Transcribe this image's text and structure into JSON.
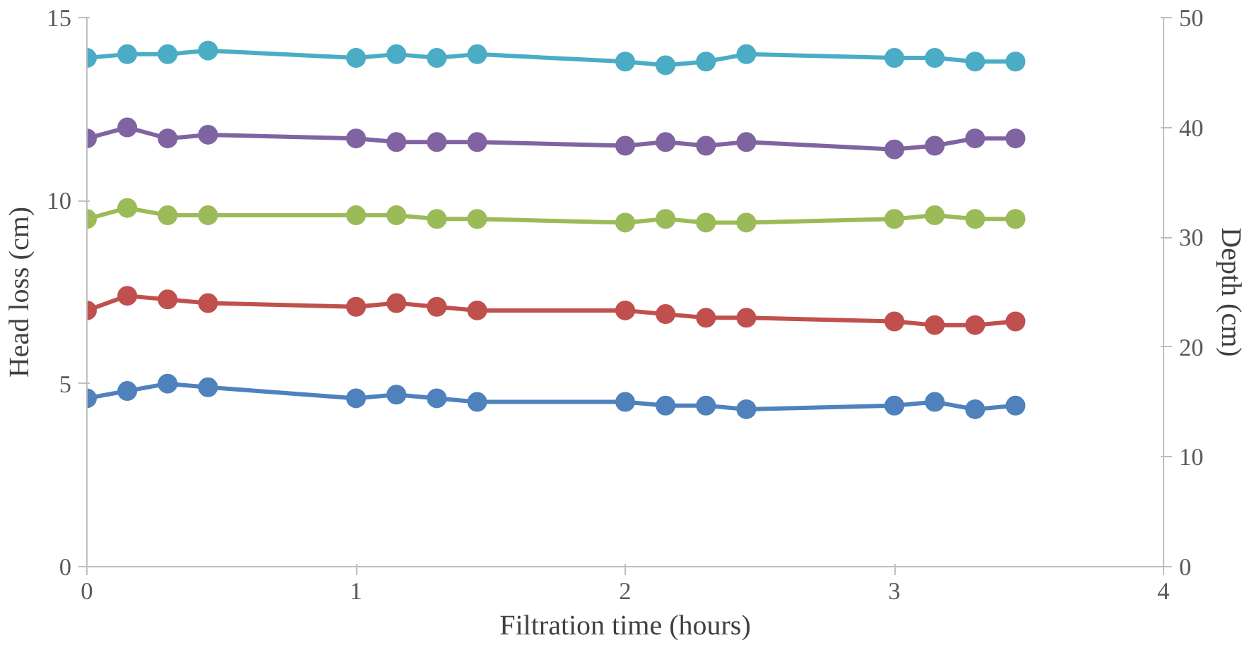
{
  "chart_data": {
    "type": "line",
    "xlabel": "Filtration time (hours)",
    "ylabel": "Head loss (cm)",
    "y2label": "Depth (cm)",
    "x": [
      0,
      0.15,
      0.3,
      0.45,
      1,
      1.15,
      1.3,
      1.45,
      2,
      2.15,
      2.3,
      2.45,
      3,
      3.15,
      3.3,
      3.45
    ],
    "series": [
      {
        "color": "#4f81bd",
        "values": [
          4.6,
          4.8,
          5.0,
          4.9,
          4.6,
          4.7,
          4.6,
          4.5,
          4.5,
          4.4,
          4.4,
          4.3,
          4.4,
          4.5,
          4.3,
          4.4
        ]
      },
      {
        "color": "#c0504d",
        "values": [
          7.0,
          7.4,
          7.3,
          7.2,
          7.1,
          7.2,
          7.1,
          7.0,
          7.0,
          6.9,
          6.8,
          6.8,
          6.7,
          6.6,
          6.6,
          6.7
        ]
      },
      {
        "color": "#9bbb59",
        "values": [
          9.5,
          9.8,
          9.6,
          9.6,
          9.6,
          9.6,
          9.5,
          9.5,
          9.4,
          9.5,
          9.4,
          9.4,
          9.5,
          9.6,
          9.5,
          9.5
        ]
      },
      {
        "color": "#8064a2",
        "values": [
          11.7,
          12.0,
          11.7,
          11.8,
          11.7,
          11.6,
          11.6,
          11.6,
          11.5,
          11.6,
          11.5,
          11.6,
          11.4,
          11.5,
          11.7,
          11.7
        ]
      },
      {
        "color": "#4bacc6",
        "values": [
          13.9,
          14.0,
          14.0,
          14.1,
          13.9,
          14.0,
          13.9,
          14.0,
          13.8,
          13.7,
          13.8,
          14.0,
          13.9,
          13.9,
          13.8,
          13.8
        ]
      }
    ],
    "xlim": [
      0,
      4
    ],
    "xticks": [
      0,
      1,
      2,
      3,
      4
    ],
    "ylim": [
      0,
      15
    ],
    "yticks": [
      0,
      5,
      10,
      15
    ],
    "y2lim": [
      0,
      50
    ],
    "y2ticks": [
      0,
      10,
      20,
      30,
      40,
      50
    ],
    "grid": false,
    "marker": "circle",
    "line_style": "solid"
  }
}
